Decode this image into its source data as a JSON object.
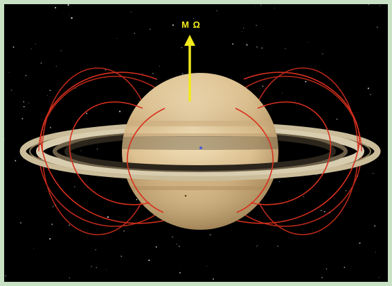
{
  "figure": {
    "axis_label": "M Ω",
    "subject": "planet-with-rings-and-magnetic-field-lines",
    "colors": {
      "background": "#000000",
      "frame": "#c8e0c4",
      "arrow": "#f2ea1c",
      "field_lines": "#d8301e",
      "planet_light": "#f0dcb0",
      "planet_dark": "#a88a5a",
      "rings": "#cfc2a2"
    },
    "icons": [
      "arrow-up-icon"
    ]
  }
}
